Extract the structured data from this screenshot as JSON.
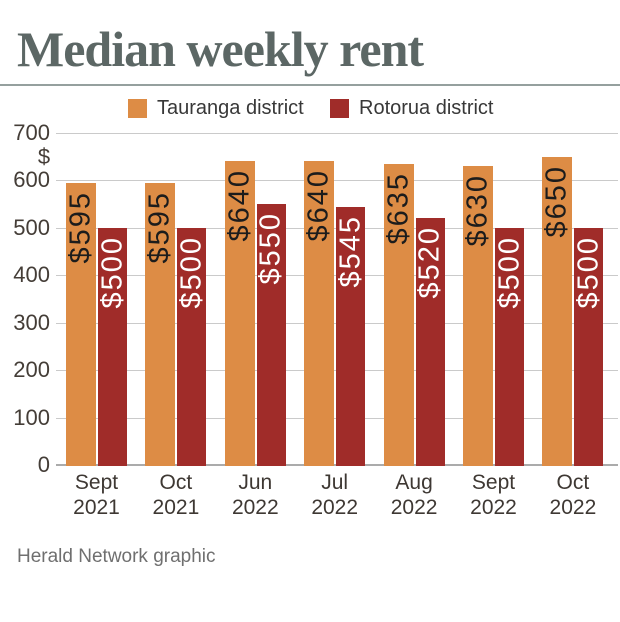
{
  "credit": "Herald Network graphic",
  "chart_data": {
    "type": "bar",
    "title": "Median weekly rent",
    "categories": [
      "Sept 2021",
      "Oct 2021",
      "Jun 2022",
      "Jul 2022",
      "Aug 2022",
      "Sept 2022",
      "Oct 2022"
    ],
    "categories_lines": [
      [
        "Sept",
        "2021"
      ],
      [
        "Oct",
        "2021"
      ],
      [
        "Jun",
        "2022"
      ],
      [
        "Jul",
        "2022"
      ],
      [
        "Aug",
        "2022"
      ],
      [
        "Sept",
        "2022"
      ],
      [
        "Oct",
        "2022"
      ]
    ],
    "series": [
      {
        "name": "Tauranga district",
        "color": "#DD8C45",
        "label_color": "#1C1C1C",
        "values": [
          595,
          595,
          640,
          640,
          635,
          630,
          650
        ],
        "display_values": [
          "$595",
          "$595",
          "$640",
          "$640",
          "$635",
          "$630",
          "$650"
        ]
      },
      {
        "name": "Rotorua district",
        "color": "#A02C29",
        "label_color": "#FFFFFF",
        "values": [
          500,
          500,
          550,
          545,
          520,
          500,
          500
        ],
        "display_values": [
          "$500",
          "$500",
          "$550",
          "$545",
          "$520",
          "$500",
          "$500"
        ]
      }
    ],
    "y_axis": {
      "unit": "$",
      "ticks": [
        700,
        600,
        500,
        400,
        300,
        200,
        100,
        0
      ],
      "min": 0,
      "max": 700
    },
    "legend_position": "top",
    "grid": true
  }
}
